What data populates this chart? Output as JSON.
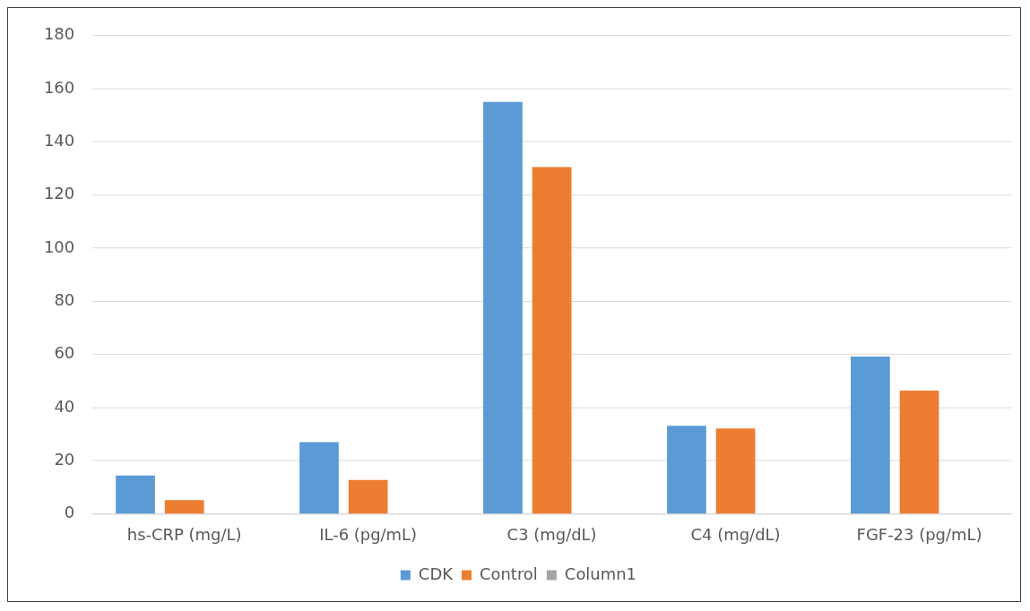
{
  "chart_data": {
    "type": "bar",
    "categories": [
      "hs-CRP (mg/L)",
      "IL-6 (pg/mL)",
      "C3 (mg/dL)",
      "C4 (mg/dL)",
      "FGF-23 (pg/mL)"
    ],
    "series": [
      {
        "name": "CDK",
        "color": "#5b9bd5",
        "values": [
          14.5,
          27,
          155,
          33.2,
          59.2
        ]
      },
      {
        "name": "Control",
        "color": "#ed7d31",
        "values": [
          5.2,
          12.8,
          130.5,
          32.2,
          46.4
        ]
      },
      {
        "name": "Column1",
        "color": "#a5a5a5",
        "values": [
          null,
          null,
          null,
          null,
          null
        ]
      }
    ],
    "ylim": [
      0,
      180
    ],
    "yticks": [
      0,
      20,
      40,
      60,
      80,
      100,
      120,
      140,
      160,
      180
    ],
    "grid": "y",
    "legend": "bottom"
  }
}
